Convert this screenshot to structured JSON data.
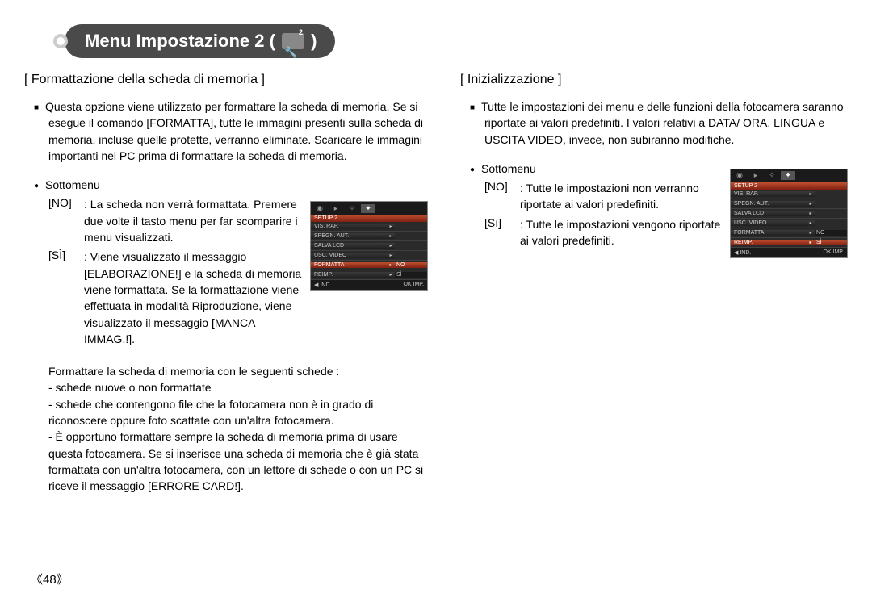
{
  "banner": {
    "title_prefix": "Menu Impostazione 2 ( ",
    "title_suffix": " )",
    "icon_sub": "2"
  },
  "page_number": "《48》",
  "left": {
    "section_title": "[ Formattazione della scheda di memoria ]",
    "intro": "Questa opzione viene utilizzato per formattare la scheda di memoria. Se si esegue il comando [FORMATTA], tutte le immagini presenti sulla scheda di memoria, incluse quelle protette, verranno eliminate. Scaricare le immagini importanti nel PC prima di formattare la scheda di memoria.",
    "submenu_label": "Sottomenu",
    "no_key": "[NO]",
    "no_val": ": La scheda non verrà formattata. Premere due volte il tasto menu per far scomparire i menu visualizzati.",
    "si_key": "[SÌ]",
    "si_val": ": Viene visualizzato il messaggio [ELABORAZIONE!] e la scheda di memoria viene formattata. Se la formattazione viene effettuata in modalità Riproduzione, viene visualizzato il messaggio [MANCA IMMAG.!].",
    "notes_intro": "Formattare la scheda di memoria con le seguenti schede :",
    "note1": "- schede nuove o non formattate",
    "note2": "- schede che contengono file che la fotocamera non è in grado di riconoscere oppure foto scattate con un'altra fotocamera.",
    "note3": "- È opportuno formattare sempre la scheda di memoria prima di usare questa fotocamera. Se si inserisce una scheda di memoria che è già stata formattata con un'altra fotocamera, con un lettore di schede o con un PC si riceve il messaggio [ERRORE CARD!]."
  },
  "right": {
    "section_title": "[ Inizializzazione ]",
    "intro": "Tutte le impostazioni dei menu e delle funzioni della fotocamera saranno riportate ai valori predefiniti. I valori relativi a DATA/ ORA, LINGUA e USCITA VIDEO, invece, non subiranno modifiche.",
    "submenu_label": "Sottomenu",
    "no_key": "[NO]",
    "no_val": ": Tutte le impostazioni non verranno riportate ai valori predefiniti.",
    "si_key": "[Sì]",
    "si_val": ": Tutte le impostazioni vengono riportate ai valori predefiniti."
  },
  "cam_menu_left": {
    "setup_label": "SETUP 2",
    "rows": [
      {
        "lbl": "VIS. RAP.",
        "val": ""
      },
      {
        "lbl": "SPEGN. AUT.",
        "val": ""
      },
      {
        "lbl": "SALVA LCD",
        "val": ""
      },
      {
        "lbl": "USC. VIDEO",
        "val": ""
      },
      {
        "lbl": "FORMATTA",
        "val": "NO",
        "sel": true,
        "selval": true
      },
      {
        "lbl": "REIMP.",
        "val": "SÌ"
      }
    ],
    "footer_left": "◀   IND.",
    "footer_right": "OK   IMP."
  },
  "cam_menu_right": {
    "setup_label": "SETUP 2",
    "rows": [
      {
        "lbl": "VIS. RAP.",
        "val": ""
      },
      {
        "lbl": "SPEGN. AUT.",
        "val": ""
      },
      {
        "lbl": "SALVA LCD",
        "val": ""
      },
      {
        "lbl": "USC. VIDEO",
        "val": ""
      },
      {
        "lbl": "FORMATTA",
        "val": "NO"
      },
      {
        "lbl": "REIMP.",
        "val": "SÌ",
        "sel": true,
        "selval": true
      }
    ],
    "footer_left": "◀   IND.",
    "footer_right": "OK   IMP."
  }
}
